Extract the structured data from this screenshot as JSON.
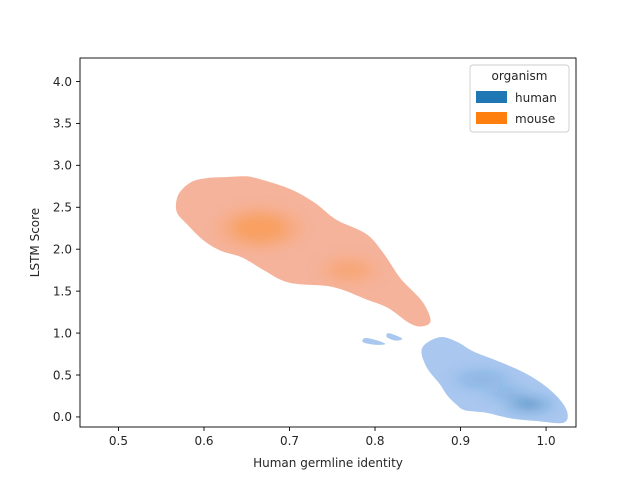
{
  "chart_data": {
    "type": "kde",
    "xlabel": "Human germline identity",
    "ylabel": "LSTM Score",
    "xlim": [
      0.455,
      1.035
    ],
    "ylim": [
      -0.12,
      4.28
    ],
    "x_ticks": [
      0.5,
      0.6,
      0.7,
      0.8,
      0.9,
      1.0
    ],
    "x_tick_labels": [
      "0.5",
      "0.6",
      "0.7",
      "0.8",
      "0.9",
      "1.0"
    ],
    "y_ticks": [
      0.0,
      0.5,
      1.0,
      1.5,
      2.0,
      2.5,
      3.0,
      3.5,
      4.0
    ],
    "y_tick_labels": [
      "0.0",
      "0.5",
      "1.0",
      "1.5",
      "2.0",
      "2.5",
      "3.0",
      "3.5",
      "4.0"
    ],
    "grid": false,
    "legend": {
      "title": "organism",
      "placement": "upper-right",
      "entries": [
        {
          "label": "human",
          "color": "#1f77b4"
        },
        {
          "label": "mouse",
          "color": "#ff7f0e"
        }
      ]
    },
    "series": [
      {
        "name": "human",
        "color": "#1f77b4",
        "outer_fill": "#a9c7ef",
        "support": [
          [
            0.855,
            0.82
          ],
          [
            0.875,
            0.95
          ],
          [
            0.895,
            0.9
          ],
          [
            0.915,
            0.78
          ],
          [
            0.94,
            0.68
          ],
          [
            0.97,
            0.55
          ],
          [
            0.995,
            0.4
          ],
          [
            1.015,
            0.22
          ],
          [
            1.025,
            0.05
          ],
          [
            1.02,
            -0.07
          ],
          [
            0.99,
            -0.05
          ],
          [
            0.96,
            -0.02
          ],
          [
            0.93,
            0.05
          ],
          [
            0.905,
            0.08
          ],
          [
            0.895,
            0.15
          ],
          [
            0.885,
            0.25
          ],
          [
            0.875,
            0.4
          ],
          [
            0.86,
            0.6
          ]
        ],
        "islands": [
          [
            [
              0.815,
              1.0
            ],
            [
              0.825,
              0.97
            ],
            [
              0.832,
              0.93
            ],
            [
              0.824,
              0.91
            ],
            [
              0.814,
              0.95
            ]
          ],
          [
            [
              0.788,
              0.94
            ],
            [
              0.8,
              0.92
            ],
            [
              0.812,
              0.87
            ],
            [
              0.8,
              0.86
            ],
            [
              0.786,
              0.89
            ]
          ]
        ],
        "density_peaks": [
          {
            "x": 0.98,
            "y": 0.15,
            "spread_x": 0.03,
            "spread_y": 0.07,
            "level": 1.0
          },
          {
            "x": 0.955,
            "y": 0.28,
            "spread_x": 0.03,
            "spread_y": 0.05,
            "level": 0.55
          },
          {
            "x": 0.925,
            "y": 0.45,
            "spread_x": 0.04,
            "spread_y": 0.12,
            "level": 0.25
          }
        ]
      },
      {
        "name": "mouse",
        "color": "#ff7f0e",
        "outer_fill": "#f5b39b",
        "support": [
          [
            0.57,
            2.65
          ],
          [
            0.585,
            2.8
          ],
          [
            0.605,
            2.85
          ],
          [
            0.625,
            2.86
          ],
          [
            0.645,
            2.87
          ],
          [
            0.66,
            2.85
          ],
          [
            0.7,
            2.72
          ],
          [
            0.73,
            2.55
          ],
          [
            0.755,
            2.35
          ],
          [
            0.79,
            2.18
          ],
          [
            0.81,
            1.95
          ],
          [
            0.83,
            1.65
          ],
          [
            0.855,
            1.38
          ],
          [
            0.865,
            1.15
          ],
          [
            0.855,
            1.08
          ],
          [
            0.84,
            1.12
          ],
          [
            0.815,
            1.3
          ],
          [
            0.79,
            1.4
          ],
          [
            0.75,
            1.55
          ],
          [
            0.7,
            1.6
          ],
          [
            0.67,
            1.75
          ],
          [
            0.645,
            1.9
          ],
          [
            0.62,
            1.98
          ],
          [
            0.6,
            2.1
          ],
          [
            0.58,
            2.3
          ],
          [
            0.568,
            2.45
          ]
        ],
        "density_peaks": [
          {
            "x": 0.665,
            "y": 2.25,
            "spread_x": 0.05,
            "spread_y": 0.25,
            "level": 0.55
          },
          {
            "x": 0.77,
            "y": 1.75,
            "spread_x": 0.04,
            "spread_y": 0.18,
            "level": 0.2
          }
        ]
      }
    ]
  }
}
